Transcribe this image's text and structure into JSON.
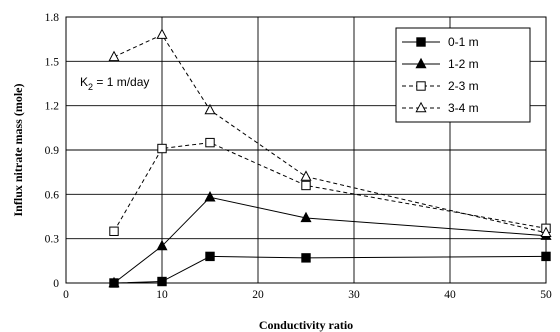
{
  "chart_data": {
    "type": "line",
    "xlabel": "Conductivity ratio",
    "ylabel": "Influx nitrate mass (mole)",
    "xlim": [
      0,
      50
    ],
    "ylim": [
      0,
      1.8
    ],
    "xticks": [
      "0",
      "10",
      "20",
      "30",
      "40",
      "50"
    ],
    "yticks": [
      "0",
      "0.3",
      "0.6",
      "0.9",
      "1.2",
      "1.5",
      "1.8"
    ],
    "grid": true,
    "legend_position": "top-right",
    "annotation": {
      "prefix": "K",
      "subscript": "2",
      "suffix": " = 1 m/day"
    },
    "x": [
      5,
      10,
      15,
      25,
      50
    ],
    "series": [
      {
        "name": "0-1 m",
        "marker": "filled-square",
        "line": "solid",
        "values": [
          0.0,
          0.01,
          0.18,
          0.17,
          0.18
        ]
      },
      {
        "name": "1-2 m",
        "marker": "filled-triangle",
        "line": "solid",
        "values": [
          0.0,
          0.25,
          0.58,
          0.44,
          0.32
        ]
      },
      {
        "name": "2-3 m",
        "marker": "open-square",
        "line": "dashed",
        "values": [
          0.35,
          0.91,
          0.95,
          0.66,
          0.37
        ]
      },
      {
        "name": "3-4 m",
        "marker": "open-triangle",
        "line": "dashed",
        "values": [
          1.53,
          1.68,
          1.17,
          0.72,
          0.34
        ]
      }
    ]
  }
}
